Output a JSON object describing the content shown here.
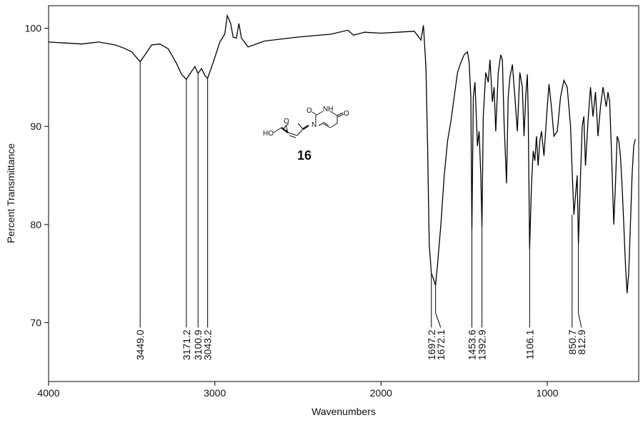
{
  "chart_data": {
    "type": "line",
    "xlabel": "Wavenumbers",
    "ylabel": "Percent Transmittance",
    "xlim": [
      4000,
      450
    ],
    "ylim": [
      64,
      102.3
    ],
    "x_reversed": true,
    "x_ticks": [
      4000,
      3000,
      2000,
      1000
    ],
    "x_tick_labels": [
      "4000",
      "3000",
      "2000",
      "1000"
    ],
    "y_ticks": [
      100,
      90,
      80,
      70
    ],
    "y_tick_labels": [
      "100",
      "90",
      "80",
      "70"
    ],
    "grid": false,
    "series": [
      {
        "color": "#000000",
        "x": [
          4000,
          3900,
          3800,
          3700,
          3600,
          3550,
          3500,
          3470,
          3449.0,
          3420,
          3380,
          3330,
          3280,
          3230,
          3200,
          3171.2,
          3140,
          3120,
          3100.9,
          3080,
          3060,
          3043.2,
          3010,
          2970,
          2940,
          2925,
          2905,
          2890,
          2870,
          2855,
          2840,
          2800,
          2700,
          2500,
          2300,
          2200,
          2165,
          2100,
          2000,
          1900,
          1800,
          1760,
          1745,
          1730,
          1720,
          1710,
          1697.2,
          1685,
          1672.1,
          1660,
          1640,
          1620,
          1600,
          1580,
          1560,
          1540,
          1520,
          1500,
          1480,
          1470,
          1460,
          1453.6,
          1445,
          1435,
          1420,
          1410,
          1400,
          1392.9,
          1385,
          1370,
          1355,
          1345,
          1330,
          1320,
          1310,
          1295,
          1280,
          1270,
          1260,
          1245,
          1235,
          1225,
          1210,
          1195,
          1180,
          1165,
          1150,
          1140,
          1130,
          1120,
          1115,
          1106.1,
          1095,
          1085,
          1075,
          1065,
          1055,
          1045,
          1035,
          1020,
          1000,
          990,
          975,
          960,
          940,
          920,
          900,
          880,
          860,
          850.7,
          840,
          830,
          820,
          812.9,
          800,
          790,
          780,
          770,
          755,
          740,
          725,
          710,
          695,
          680,
          665,
          655,
          645,
          635,
          625,
          615,
          600,
          590,
          580,
          570,
          560,
          550,
          540,
          530,
          520,
          510,
          500,
          490,
          480,
          470
        ],
        "y": [
          98.6,
          98.5,
          98.4,
          98.6,
          98.3,
          98.0,
          97.6,
          97.0,
          96.6,
          97.3,
          98.3,
          98.4,
          97.9,
          96.4,
          95.3,
          94.8,
          95.6,
          96.1,
          95.4,
          95.9,
          95.2,
          94.9,
          96.5,
          98.6,
          99.4,
          101.3,
          100.5,
          99.1,
          99.0,
          100.5,
          99.0,
          98.1,
          98.7,
          99.1,
          99.4,
          99.8,
          99.3,
          99.6,
          99.5,
          99.6,
          99.7,
          98.8,
          100.3,
          96.0,
          88.0,
          78.0,
          75.0,
          74.5,
          73.8,
          76.0,
          80.0,
          85.0,
          88.5,
          90.5,
          93.0,
          95.5,
          96.5,
          97.3,
          97.6,
          96.5,
          93.0,
          79.5,
          93.0,
          94.5,
          88.0,
          89.5,
          85.0,
          79.8,
          91.0,
          95.5,
          94.5,
          96.8,
          92.5,
          94.0,
          89.5,
          95.5,
          97.3,
          96.8,
          90.5,
          84.2,
          93.0,
          95.0,
          96.3,
          93.0,
          89.5,
          95.5,
          94.0,
          89.0,
          93.0,
          95.3,
          91.5,
          77.5,
          84.0,
          87.5,
          86.5,
          89.0,
          86.0,
          88.5,
          89.5,
          87.0,
          92.0,
          94.3,
          92.0,
          89.0,
          89.5,
          93.0,
          94.7,
          94.0,
          90.0,
          85.5,
          81.0,
          83.0,
          85.0,
          78.0,
          85.0,
          90.0,
          91.0,
          86.0,
          90.5,
          94.0,
          91.0,
          93.5,
          89.0,
          92.0,
          94.0,
          93.0,
          92.0,
          93.5,
          92.5,
          88.0,
          80.0,
          84.0,
          89.0,
          88.5,
          87.0,
          84.0,
          80.0,
          76.0,
          73.0,
          75.0,
          80.0,
          85.0,
          88.0,
          88.7
        ]
      }
    ],
    "peaks": [
      {
        "x": 3449.0,
        "y": 96.6,
        "label": "3449.0"
      },
      {
        "x": 3171.2,
        "y": 94.8,
        "label": "3171.2"
      },
      {
        "x": 3100.9,
        "y": 95.4,
        "label": "3100.9"
      },
      {
        "x": 3043.2,
        "y": 94.9,
        "label": "3043.2"
      },
      {
        "x": 1697.2,
        "y": 75.0,
        "label": "1697.2"
      },
      {
        "x": 1672.1,
        "y": 73.8,
        "label": "1672.1"
      },
      {
        "x": 1453.6,
        "y": 79.5,
        "label": "1453.6"
      },
      {
        "x": 1392.9,
        "y": 79.8,
        "label": "1392.9"
      },
      {
        "x": 1106.1,
        "y": 77.5,
        "label": "1106.1"
      },
      {
        "x": 850.7,
        "y": 81.0,
        "label": "850.7"
      },
      {
        "x": 812.9,
        "y": 78.0,
        "label": "812.9"
      }
    ],
    "annotations": {
      "compound_number": "16",
      "structure_atom_labels": [
        "HO",
        "O",
        "N",
        "O",
        "NH",
        "O"
      ]
    }
  }
}
